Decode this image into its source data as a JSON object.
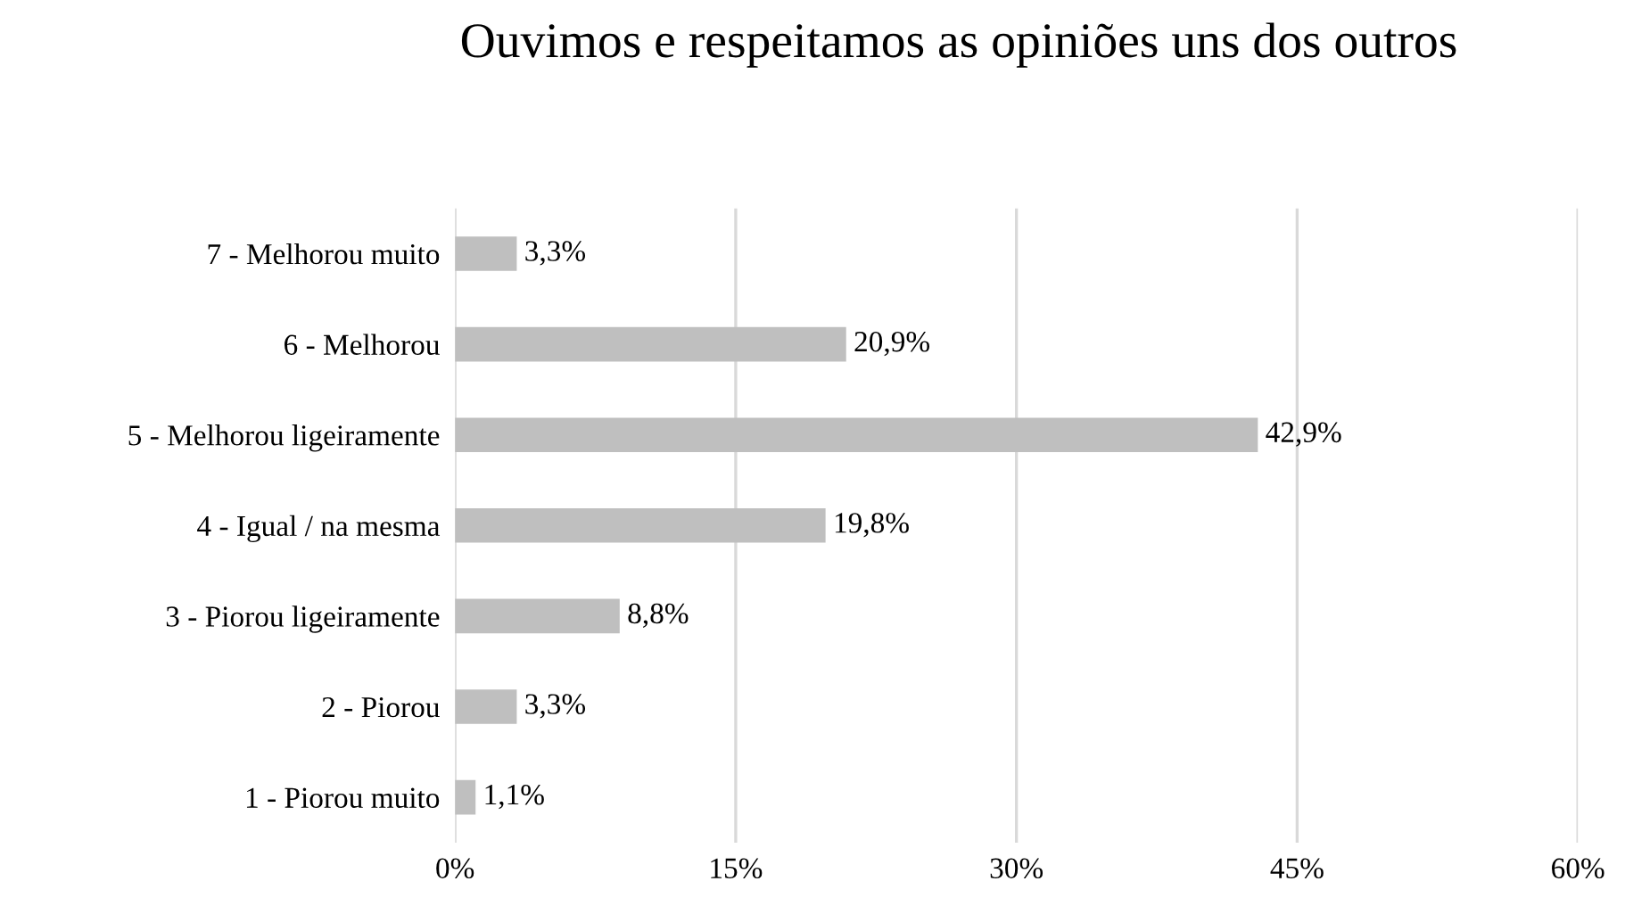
{
  "chart_data": {
    "type": "bar",
    "orientation": "horizontal",
    "title": "Ouvimos e respeitamos as opiniões uns dos outros",
    "categories": [
      "7 - Melhorou muito",
      "6 - Melhorou",
      "5 - Melhorou ligeiramente",
      "4 - Igual / na mesma",
      "3 - Piorou ligeiramente",
      "2 - Piorou",
      "1 - Piorou muito"
    ],
    "values": [
      3.3,
      20.9,
      42.9,
      19.8,
      8.8,
      3.3,
      1.1
    ],
    "value_labels": [
      "3,3%",
      "20,9%",
      "42,9%",
      "19,8%",
      "8,8%",
      "3,3%",
      "1,1%"
    ],
    "color": "#bfbfbf",
    "xlim": [
      0,
      60
    ],
    "xticks": [
      {
        "value": 0,
        "label": "0%"
      },
      {
        "value": 15,
        "label": "15%"
      },
      {
        "value": 30,
        "label": "30%"
      },
      {
        "value": 45,
        "label": "45%"
      },
      {
        "value": 60,
        "label": "60%"
      }
    ],
    "grid": "x",
    "legend": false
  }
}
